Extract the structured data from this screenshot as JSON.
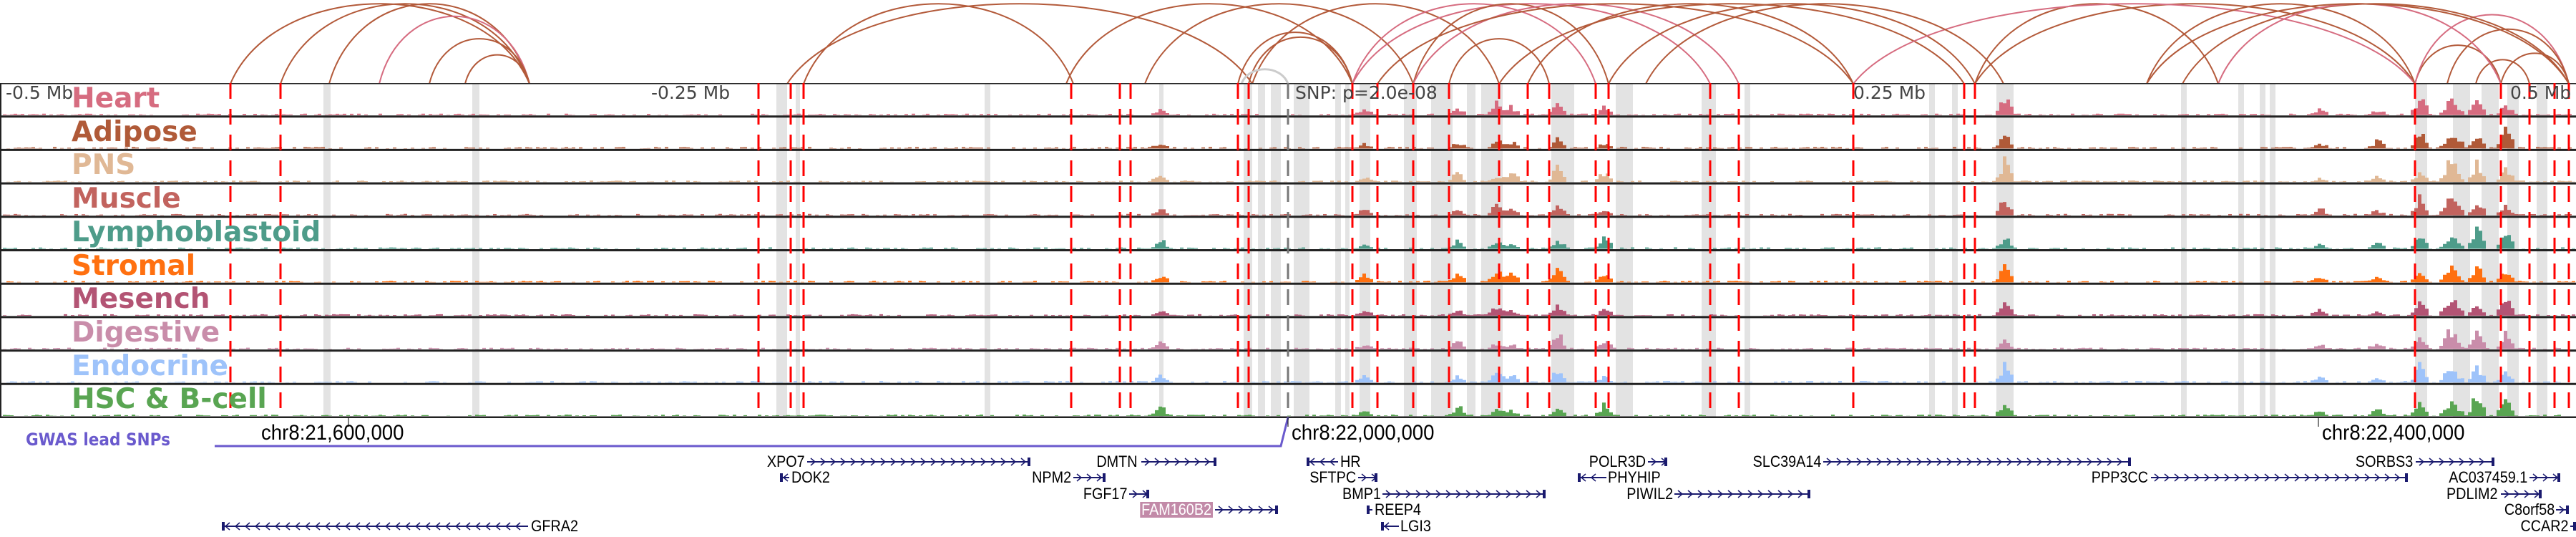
{
  "axis": {
    "left": "-0.5 Mb",
    "left_mid": "-0.25 Mb",
    "center": "SNP: p=2.0e-08",
    "right_mid": "0.25 Mb",
    "right": "0.5 Mb"
  },
  "tracks": [
    {
      "label": "Heart",
      "color": "#d66c80"
    },
    {
      "label": "Adipose",
      "color": "#b05a38"
    },
    {
      "label": "PNS",
      "color": "#e0b895"
    },
    {
      "label": "Muscle",
      "color": "#c2635e"
    },
    {
      "label": "Lymphoblastoid",
      "color": "#4e9c8a"
    },
    {
      "label": "Stromal",
      "color": "#ff7010"
    },
    {
      "label": "Mesench",
      "color": "#b35474"
    },
    {
      "label": "Digestive",
      "color": "#c98daa"
    },
    {
      "label": "Endocrine",
      "color": "#9ec3fa"
    },
    {
      "label": "HSC & B-cell",
      "color": "#59a552"
    }
  ],
  "coordinates": [
    "chr8:21,600,000",
    "chr8:22,000,000",
    "chr8:22,400,000"
  ],
  "gwas": {
    "label": "GWAS lead SNPs",
    "color": "#6a5acd"
  },
  "genes": [
    {
      "name": "XPO7",
      "strand": "+"
    },
    {
      "name": "DOK2",
      "strand": "-"
    },
    {
      "name": "DMTN",
      "strand": "+"
    },
    {
      "name": "NPM2",
      "strand": "+"
    },
    {
      "name": "FGF17",
      "strand": "+"
    },
    {
      "name": "FAM160B2",
      "strand": "+",
      "highlighted": true
    },
    {
      "name": "HR",
      "strand": "-"
    },
    {
      "name": "SFTPC",
      "strand": "+"
    },
    {
      "name": "BMP1",
      "strand": "+"
    },
    {
      "name": "REEP4",
      "strand": "-"
    },
    {
      "name": "LGI3",
      "strand": "-"
    },
    {
      "name": "POLR3D",
      "strand": "+"
    },
    {
      "name": "PHYHIP",
      "strand": "-"
    },
    {
      "name": "PIWIL2",
      "strand": "+"
    },
    {
      "name": "SLC39A14",
      "strand": "+"
    },
    {
      "name": "PPP3CC",
      "strand": "+"
    },
    {
      "name": "SORBS3",
      "strand": "+"
    },
    {
      "name": "AC037459.1",
      "strand": "+"
    },
    {
      "name": "PDLIM2",
      "strand": "+"
    },
    {
      "name": "C8orf58",
      "strand": "+"
    },
    {
      "name": "CCAR2",
      "strand": "+"
    },
    {
      "name": "GFRA2",
      "strand": "-"
    }
  ],
  "colors": {
    "red_line": "#ff0000",
    "grey_band": "#e3e3e3",
    "gene": "#1a1a6e",
    "arc_a": "#b35a3a",
    "arc_b": "#d66c80"
  }
}
